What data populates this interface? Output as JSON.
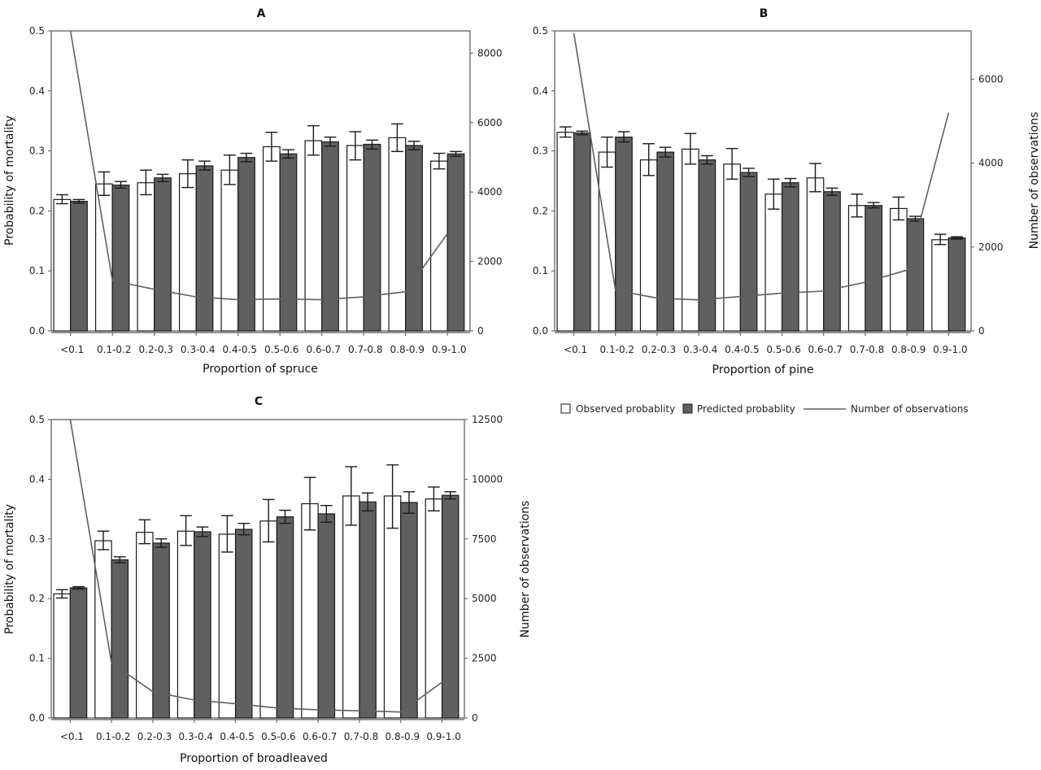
{
  "legend": {
    "observed": "Observed probablity",
    "predicted": "Predicted probablity",
    "count": "Number of observations"
  },
  "colors": {
    "observed_fill": "#ffffff",
    "predicted_fill": "#606060",
    "bar_stroke": "#1a1a1a",
    "line": "#606060",
    "frame": "#555555"
  },
  "chart_data": [
    {
      "type": "bar",
      "title": "A",
      "xlabel": "Proportion of spruce",
      "ylabel": "Probability of mortality",
      "ylabel2": "",
      "ylim": [
        0,
        0.5
      ],
      "yticks": [
        "0.0",
        "0.1",
        "0.2",
        "0.3",
        "0.4",
        "0.5"
      ],
      "y2lim": [
        0,
        8640
      ],
      "y2ticks": [
        "0",
        "2000",
        "4000",
        "6000",
        "8000"
      ],
      "categories": [
        "<0.1",
        "0.1-0.2",
        "0.2-0.3",
        "0.3-0.4",
        "0.4-0.5",
        "0.5-0.6",
        "0.6-0.7",
        "0.7-0.8",
        "0.8-0.9",
        "0.9-1.0"
      ],
      "series": [
        {
          "name": "Observed probablity",
          "values": [
            0.219,
            0.245,
            0.247,
            0.262,
            0.268,
            0.307,
            0.317,
            0.309,
            0.322,
            0.283
          ],
          "err_low": [
            0.212,
            0.226,
            0.227,
            0.239,
            0.244,
            0.283,
            0.293,
            0.285,
            0.299,
            0.27
          ],
          "err_high": [
            0.227,
            0.265,
            0.268,
            0.285,
            0.293,
            0.331,
            0.342,
            0.332,
            0.345,
            0.296
          ]
        },
        {
          "name": "Predicted probablity",
          "values": [
            0.216,
            0.243,
            0.255,
            0.275,
            0.289,
            0.295,
            0.315,
            0.311,
            0.309,
            0.295
          ],
          "err_low": [
            0.213,
            0.238,
            0.249,
            0.268,
            0.282,
            0.288,
            0.308,
            0.303,
            0.302,
            0.291
          ],
          "err_high": [
            0.219,
            0.249,
            0.261,
            0.283,
            0.296,
            0.302,
            0.323,
            0.318,
            0.316,
            0.299
          ]
        },
        {
          "name": "Number of observations",
          "values": [
            8650,
            1450,
            1200,
            980,
            900,
            920,
            900,
            980,
            1130,
            2800
          ]
        }
      ]
    },
    {
      "type": "bar",
      "title": "B",
      "xlabel": "Proportion of pine",
      "ylabel": "",
      "ylabel2": "Number of observations",
      "ylim": [
        0,
        0.5
      ],
      "yticks": [
        "0.0",
        "0.1",
        "0.2",
        "0.3",
        "0.4",
        "0.5"
      ],
      "y2lim": [
        0,
        7150
      ],
      "y2ticks": [
        "0",
        "2000",
        "4000",
        "6000"
      ],
      "categories": [
        "<0.1",
        "0.1-0.2",
        "0.2-0.3",
        "0.3-0.4",
        "0.4-0.5",
        "0.5-0.6",
        "0.6-0.7",
        "0.7-0.8",
        "0.8-0.9",
        "0.9-1.0"
      ],
      "series": [
        {
          "name": "Observed probablity",
          "values": [
            0.331,
            0.298,
            0.285,
            0.303,
            0.278,
            0.228,
            0.255,
            0.209,
            0.204,
            0.152
          ],
          "err_low": [
            0.323,
            0.273,
            0.259,
            0.278,
            0.253,
            0.203,
            0.232,
            0.19,
            0.185,
            0.144
          ],
          "err_high": [
            0.34,
            0.323,
            0.312,
            0.329,
            0.304,
            0.253,
            0.279,
            0.228,
            0.223,
            0.161
          ]
        },
        {
          "name": "Predicted probablity",
          "values": [
            0.33,
            0.323,
            0.298,
            0.285,
            0.264,
            0.247,
            0.232,
            0.209,
            0.187,
            0.155
          ],
          "err_low": [
            0.327,
            0.315,
            0.29,
            0.278,
            0.257,
            0.24,
            0.226,
            0.205,
            0.183,
            0.153
          ],
          "err_high": [
            0.333,
            0.332,
            0.306,
            0.292,
            0.271,
            0.254,
            0.238,
            0.214,
            0.191,
            0.157
          ]
        },
        {
          "name": "Number of observations",
          "values": [
            7100,
            970,
            780,
            740,
            820,
            900,
            950,
            1160,
            1450,
            5200
          ]
        }
      ]
    },
    {
      "type": "bar",
      "title": "C",
      "xlabel": "Proportion of broadleaved",
      "ylabel": "Probability of mortality",
      "ylabel2": "Number of observations",
      "ylim": [
        0,
        0.5
      ],
      "yticks": [
        "0.0",
        "0.1",
        "0.2",
        "0.3",
        "0.4",
        "0.5"
      ],
      "y2lim": [
        0,
        12500
      ],
      "y2ticks": [
        "0",
        "2500",
        "5000",
        "7500",
        "10000",
        "12500"
      ],
      "categories": [
        "<0.1",
        "0.1-0.2",
        "0.2-0.3",
        "0.3-0.4",
        "0.4-0.5",
        "0.5-0.6",
        "0.6-0.7",
        "0.7-0.8",
        "0.8-0.9",
        "0.9-1.0"
      ],
      "series": [
        {
          "name": "Observed probablity",
          "values": [
            0.208,
            0.297,
            0.311,
            0.313,
            0.308,
            0.33,
            0.359,
            0.372,
            0.372,
            0.367
          ],
          "err_low": [
            0.201,
            0.282,
            0.292,
            0.289,
            0.278,
            0.295,
            0.315,
            0.323,
            0.318,
            0.347
          ],
          "err_high": [
            0.215,
            0.313,
            0.332,
            0.339,
            0.339,
            0.366,
            0.403,
            0.421,
            0.424,
            0.387
          ]
        },
        {
          "name": "Predicted probablity",
          "values": [
            0.218,
            0.265,
            0.293,
            0.312,
            0.316,
            0.337,
            0.342,
            0.362,
            0.361,
            0.373
          ],
          "err_low": [
            0.216,
            0.26,
            0.286,
            0.304,
            0.307,
            0.326,
            0.328,
            0.347,
            0.343,
            0.367
          ],
          "err_high": [
            0.22,
            0.27,
            0.3,
            0.32,
            0.326,
            0.348,
            0.356,
            0.377,
            0.379,
            0.379
          ]
        },
        {
          "name": "Number of observations",
          "values": [
            12500,
            2300,
            1100,
            750,
            600,
            420,
            340,
            300,
            250,
            1500
          ]
        }
      ]
    }
  ]
}
